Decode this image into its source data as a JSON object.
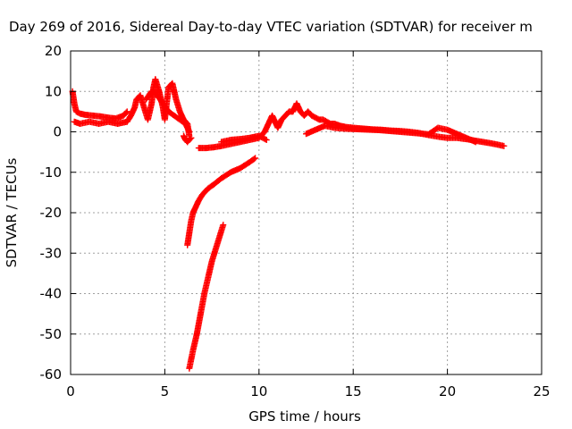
{
  "chart_data": {
    "type": "scatter",
    "title": "Day 269 of 2016, Sidereal Day-to-day VTEC variation (SDTVAR) for receiver m",
    "xlabel": "GPS time / hours",
    "ylabel": "SDTVAR / TECUs",
    "xlim": [
      0,
      25
    ],
    "ylim": [
      -60,
      20
    ],
    "xticks": [
      0,
      5,
      10,
      15,
      20,
      25
    ],
    "yticks": [
      -60,
      -50,
      -40,
      -30,
      -20,
      -10,
      0,
      10,
      20
    ],
    "grid": true,
    "marker": "plus",
    "color": "#ff0000",
    "series": [
      {
        "x": [
          0.1,
          0.2,
          0.3,
          0.5,
          0.8,
          1.2,
          1.6,
          2.0,
          2.4,
          2.8,
          3.0
        ],
        "y": [
          10,
          7,
          5,
          4.5,
          4.2,
          4.0,
          3.8,
          3.5,
          3.3,
          4.0,
          5
        ]
      },
      {
        "x": [
          0.2,
          0.5,
          1.0,
          1.5,
          2.0,
          2.5,
          3.0,
          3.2,
          3.4,
          3.5,
          3.7,
          3.9,
          4.1,
          4.3,
          4.4,
          4.5,
          4.7,
          4.9,
          5.0,
          5.2,
          5.4,
          5.6,
          5.8,
          6.0,
          6.2,
          6.3
        ],
        "y": [
          2.5,
          2.0,
          2.5,
          2.0,
          2.5,
          2.0,
          2.5,
          4,
          6,
          8,
          9,
          6,
          3,
          7,
          11,
          13,
          10,
          6,
          3,
          11,
          12,
          8,
          5,
          3,
          2,
          -1
        ]
      },
      {
        "x": [
          4.0,
          4.3,
          4.6,
          4.9,
          5.2,
          5.5,
          5.8,
          6.1,
          6.3
        ],
        "y": [
          8,
          10,
          9,
          7,
          5,
          4,
          3,
          2,
          0
        ]
      },
      {
        "x": [
          6.0,
          6.1,
          6.2,
          6.3,
          6.4
        ],
        "y": [
          -1,
          -2,
          -2.5,
          -2,
          -1.5
        ]
      },
      {
        "x": [
          6.8,
          7.2,
          7.6,
          8.0,
          8.5,
          9.0,
          9.5,
          10.0,
          10.3,
          10.5,
          10.7,
          10.9,
          11.0,
          11.2,
          11.4,
          11.6,
          11.8,
          12.0,
          12.2,
          12.4,
          12.6,
          12.8,
          13.0,
          13.2,
          13.4,
          13.6,
          13.8,
          14.0,
          14.3,
          14.6,
          15.0,
          15.5,
          16.0,
          16.5,
          17.0,
          17.5,
          18.0,
          18.5,
          19.0,
          19.5,
          20.0,
          20.5,
          21.0,
          21.5,
          22.0,
          22.5,
          23.0
        ],
        "y": [
          -4,
          -4,
          -3.8,
          -3.5,
          -3,
          -2.5,
          -2,
          -1.5,
          0,
          2,
          4,
          2,
          1,
          3,
          4,
          5,
          5,
          7,
          5,
          4,
          5,
          4,
          3.5,
          3,
          3,
          2.5,
          2,
          2,
          1.5,
          1.2,
          1,
          0.8,
          0.6,
          0.5,
          0.3,
          0.2,
          0,
          -0.3,
          -0.8,
          -1.2,
          -1.5,
          -1.5,
          -1.8,
          -2.2,
          -2.6,
          -3,
          -3.5
        ]
      },
      {
        "x": [
          8.0,
          8.5,
          9.0,
          9.5,
          9.8,
          10.0,
          10.2,
          10.4
        ],
        "y": [
          -2.5,
          -2.0,
          -1.8,
          -1.5,
          -1.2,
          -1.0,
          -1.5,
          -2
        ]
      },
      {
        "x": [
          12.5,
          13.0,
          13.5,
          14.0,
          14.5,
          15.0,
          15.5,
          16.0,
          16.5,
          17.0,
          17.5,
          18.0,
          18.5,
          19.0,
          19.5,
          20.0,
          20.5,
          21.0,
          21.5
        ],
        "y": [
          -0.5,
          0.5,
          1.5,
          1.0,
          0.8,
          0.7,
          0.6,
          0.5,
          0.4,
          0.2,
          0.0,
          -0.2,
          -0.4,
          -0.6,
          1.0,
          0.5,
          -0.5,
          -1.5,
          -2.5
        ]
      },
      {
        "x": [
          6.2,
          6.3,
          6.4,
          6.5,
          6.6,
          6.8,
          7.0,
          7.3,
          7.6,
          8.0,
          8.5,
          9.0,
          9.5,
          9.8
        ],
        "y": [
          -28,
          -25,
          -22,
          -20,
          -19,
          -17,
          -15.5,
          -14,
          -13,
          -11.5,
          -10,
          -9,
          -7.5,
          -6.5
        ]
      },
      {
        "x": [
          6.3,
          6.5,
          6.7,
          6.9,
          7.1,
          7.3,
          7.5,
          7.7,
          7.9,
          8.1
        ],
        "y": [
          -58.5,
          -54,
          -50,
          -45,
          -40,
          -36,
          -32,
          -29,
          -26,
          -23
        ]
      }
    ]
  }
}
